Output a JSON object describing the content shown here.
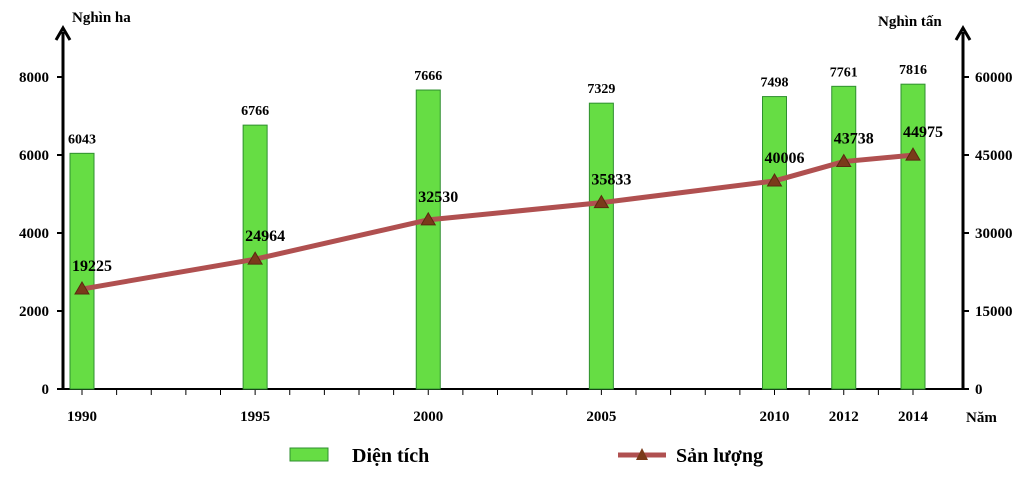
{
  "chart_data": {
    "type": "bar+line",
    "categories": [
      "1990",
      "1995",
      "2000",
      "2005",
      "2010",
      "2012",
      "2014"
    ],
    "category_positions": [
      1990,
      1995,
      2000,
      2005,
      2010,
      2012,
      2014
    ],
    "x_tick_range": [
      1990,
      2014
    ],
    "xlabel": "Năm",
    "left_axis": {
      "label": "Nghìn ha",
      "ticks": [
        0,
        2000,
        4000,
        6000,
        8000
      ],
      "ylim": [
        0,
        9000
      ]
    },
    "right_axis": {
      "label": "Nghìn tấn",
      "ticks": [
        0,
        15000,
        30000,
        45000,
        60000
      ],
      "ylim": [
        0,
        67500
      ]
    },
    "series": [
      {
        "name": "Diện tích",
        "type": "bar",
        "axis": "left",
        "color": "#66dd44",
        "border": "#2f8f2f",
        "values": [
          6043,
          6766,
          7666,
          7329,
          7498,
          7761,
          7816
        ]
      },
      {
        "name": "Sản lượng",
        "type": "line",
        "axis": "right",
        "color": "#b05050",
        "marker_color": "#7a3a1a",
        "values": [
          19225,
          24964,
          32530,
          35833,
          40006,
          43738,
          44975
        ]
      }
    ],
    "legend": {
      "position": "bottom"
    },
    "grid": false
  }
}
